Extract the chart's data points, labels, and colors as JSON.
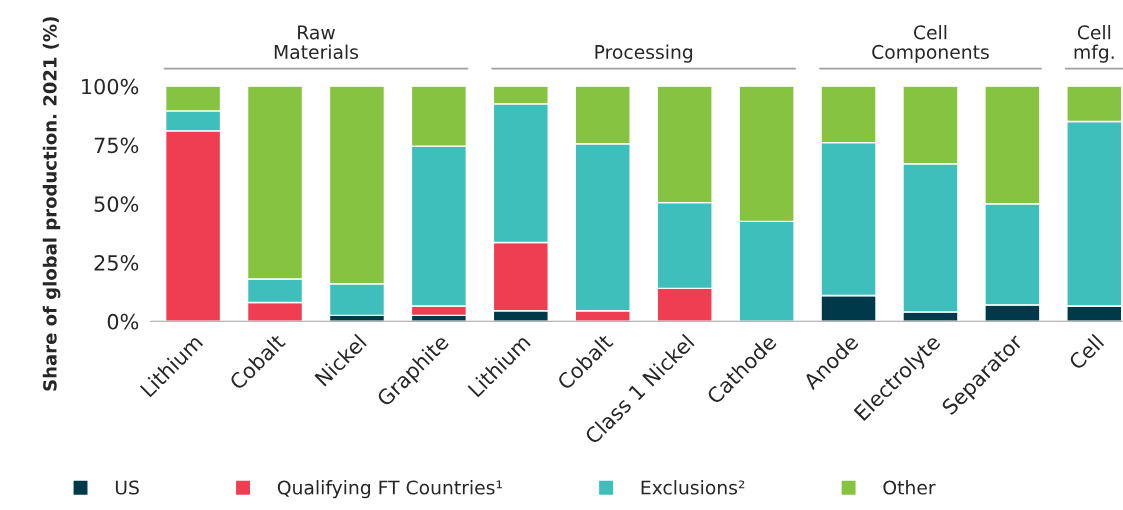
{
  "chart_data": {
    "type": "bar",
    "stacked": true,
    "ylabel": "Share of global production. 2021 (%)",
    "categories": [
      "Lithium",
      "Cobalt",
      "Nickel",
      "Graphite",
      "Lithium",
      "Cobalt",
      "Class 1 Nickel",
      "Cathode",
      "Anode",
      "Electrolyte",
      "Separator",
      "Cell"
    ],
    "series": [
      {
        "name": "US",
        "color": "#003a4a",
        "values": [
          0,
          0,
          2.5,
          2.5,
          4.5,
          0,
          0,
          0,
          11,
          4,
          7,
          6.5
        ]
      },
      {
        "name": "Qualifying FT Countries¹",
        "color": "#ef3e52",
        "values": [
          81,
          8,
          0,
          4,
          29,
          4.5,
          14,
          0,
          0,
          0,
          0,
          0
        ]
      },
      {
        "name": "Exclusions²",
        "color": "#3fbfbc",
        "values": [
          8.5,
          10,
          13.5,
          68,
          59,
          71,
          36.5,
          42.5,
          65,
          63,
          43,
          78.5
        ]
      },
      {
        "name": "Other",
        "color": "#86c341",
        "values": [
          10.5,
          82,
          84,
          25.5,
          7.5,
          24.5,
          49.5,
          57.5,
          24,
          33,
          50,
          15
        ]
      }
    ],
    "ylim": [
      0,
      100
    ],
    "yticks": [
      {
        "value": 0,
        "label": "0%"
      },
      {
        "value": 25,
        "label": "25%"
      },
      {
        "value": 50,
        "label": "50%"
      },
      {
        "value": 75,
        "label": "75%"
      },
      {
        "value": 100,
        "label": "100%"
      }
    ],
    "annotations": [
      "Raw\nMaterials",
      "Processing",
      "Cell\nComponents",
      "Cell\nmfg."
    ],
    "grid": false,
    "legend": "bottom",
    "marker": "square"
  }
}
